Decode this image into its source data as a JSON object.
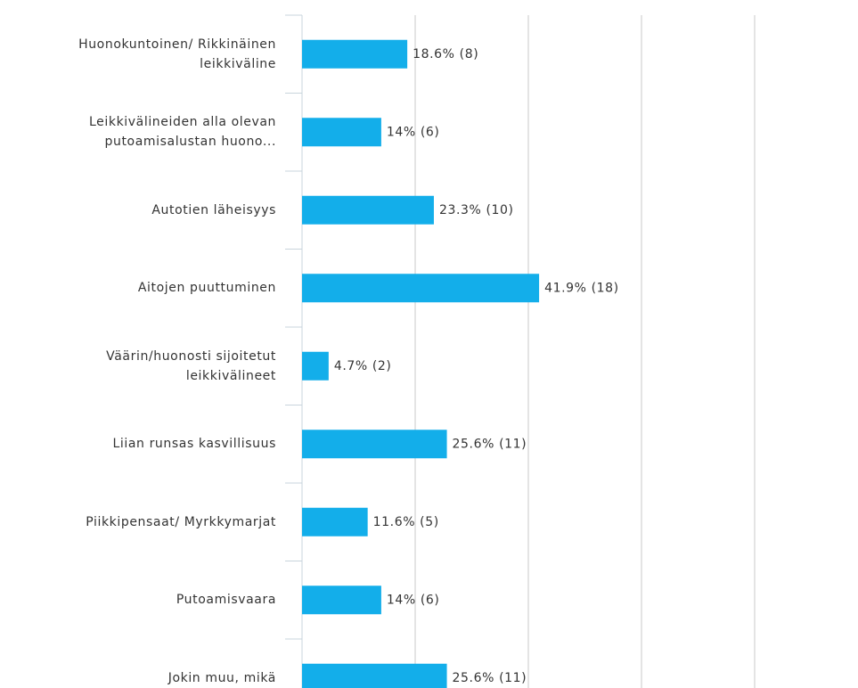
{
  "chart_data": {
    "type": "bar",
    "orientation": "horizontal",
    "categories": [
      "Huonokuntoinen/ Rikkinäinen\nleikkiväline",
      "Leikkivälineiden alla olevan\nputoamisalustan huono...",
      "Autotien läheisyys",
      "Aitojen puuttuminen",
      "Väärin/huonosti sijoitetut\nleikkivälineet",
      "Liian runsas kasvillisuus",
      "Piikkipensaat/ Myrkkymarjat",
      "Putoamisvaara",
      "Jokin muu, mikä"
    ],
    "values": [
      18.6,
      14,
      23.3,
      41.9,
      4.7,
      25.6,
      11.6,
      14,
      25.6
    ],
    "value_labels": [
      "18.6% (8)",
      "14% (6)",
      "23.3% (10)",
      "41.9% (18)",
      "4.7% (2)",
      "25.6% (11)",
      "11.6% (5)",
      "14% (6)",
      "25.6% (11)"
    ],
    "color": "#13aeea",
    "xlim": [
      0,
      80
    ],
    "xticks": [
      0,
      20,
      40,
      60,
      80
    ],
    "grid": true
  }
}
